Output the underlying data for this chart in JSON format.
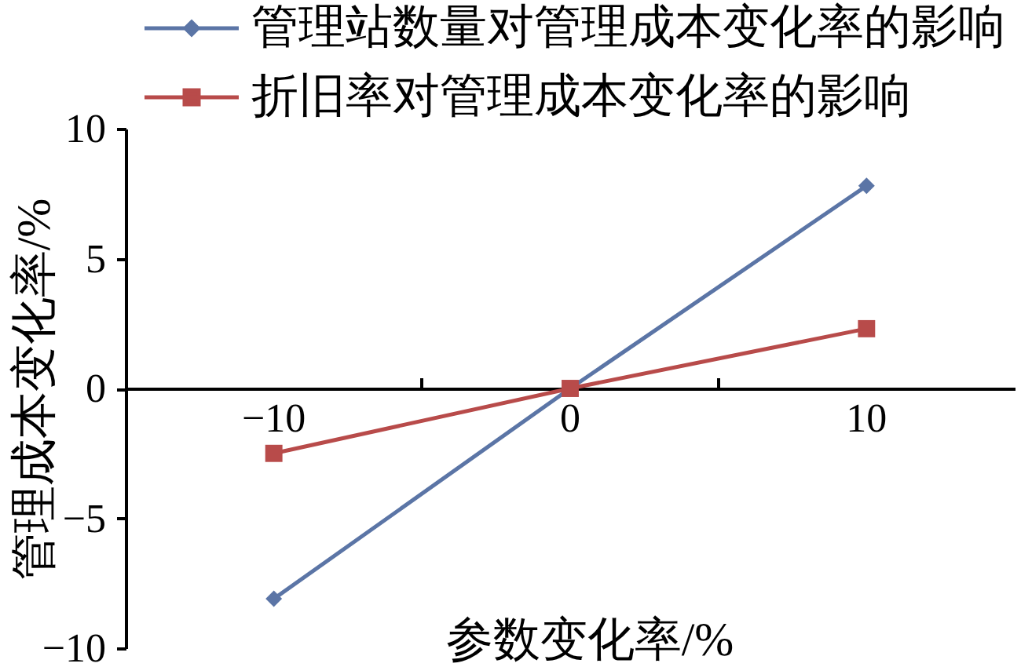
{
  "chart_data": {
    "type": "line",
    "xlabel": "参数变化率/%",
    "ylabel": "管理成本变化率/%",
    "categories": [
      "−10",
      "0",
      "10"
    ],
    "series": [
      {
        "name": "管理站数量对管理成本变化率的影响",
        "color": "#5b75a6",
        "marker": "diamond",
        "values": [
          -8.1,
          0,
          7.8
        ]
      },
      {
        "name": "折旧率对管理成本变化率的影响",
        "color": "#b84b4a",
        "marker": "square",
        "values": [
          -2.5,
          0,
          2.3
        ]
      }
    ],
    "ylim": [
      -10,
      10
    ],
    "yticks": [
      -10,
      -5,
      0,
      5,
      10
    ],
    "legend": "top",
    "line_style": "solid"
  }
}
